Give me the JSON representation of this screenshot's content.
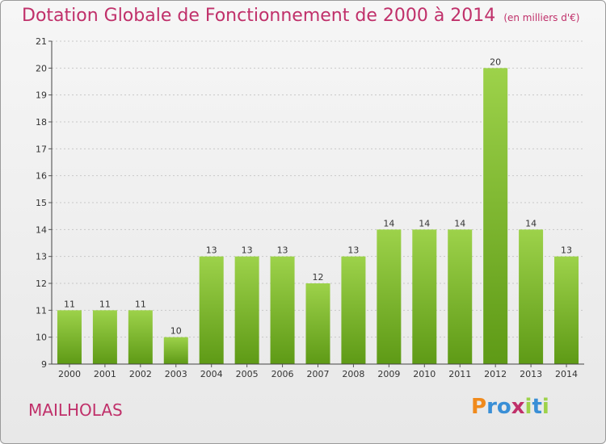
{
  "header": {
    "title": "Dotation Globale de Fonctionnement de 2000 à 2014",
    "unit": "(en milliers d'€)"
  },
  "footer": {
    "commune": "MAILHOLAS",
    "logo_text": "Proxiti"
  },
  "colors": {
    "title": "#c0306a",
    "bar_top": "#9dd24a",
    "bar_bottom": "#5e9a16",
    "logo_letters": [
      "#f08a1c",
      "#3a8fd6",
      "#3a8fd6",
      "#c0306a",
      "#9dd24a",
      "#3a8fd6",
      "#9dd24a"
    ]
  },
  "chart_data": {
    "type": "bar",
    "categories": [
      "2000",
      "2001",
      "2002",
      "2003",
      "2004",
      "2005",
      "2006",
      "2007",
      "2008",
      "2009",
      "2010",
      "2011",
      "2012",
      "2013",
      "2014"
    ],
    "values": [
      11,
      11,
      11,
      10,
      13,
      13,
      13,
      12,
      13,
      14,
      14,
      14,
      20,
      14,
      13
    ],
    "ylim": [
      9,
      21
    ],
    "yticks": [
      9,
      10,
      11,
      12,
      13,
      14,
      15,
      16,
      17,
      18,
      19,
      20,
      21
    ],
    "grid": "horizontal-dotted",
    "legend": "none"
  }
}
